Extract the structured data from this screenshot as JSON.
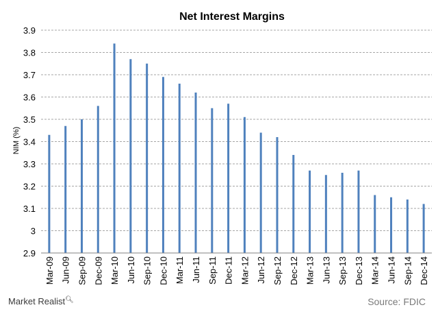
{
  "chart_data": {
    "type": "bar",
    "title": "Net Interest Margins",
    "ylabel": "NIM (%)",
    "xlabel": "",
    "ylim": [
      2.9,
      3.9
    ],
    "yticks": [
      "2.9",
      "3",
      "3.1",
      "3.2",
      "3.3",
      "3.4",
      "3.5",
      "3.6",
      "3.7",
      "3.8",
      "3.9"
    ],
    "grid": true,
    "bar_color": "#4f81bd",
    "categories": [
      "Mar-09",
      "Jun-09",
      "Sep-09",
      "Dec-09",
      "Mar-10",
      "Jun-10",
      "Sep-10",
      "Dec-10",
      "Mar-11",
      "Jun-11",
      "Sep-11",
      "Dec-11",
      "Mar-12",
      "Jun-12",
      "Sep-12",
      "Dec-12",
      "Mar-13",
      "Jun-13",
      "Sep-13",
      "Dec-13",
      "Mar-14",
      "Jun-14",
      "Sep-14",
      "Dec-14"
    ],
    "values": [
      3.43,
      3.47,
      3.5,
      3.56,
      3.84,
      3.77,
      3.75,
      3.69,
      3.66,
      3.62,
      3.55,
      3.57,
      3.51,
      3.44,
      3.42,
      3.34,
      3.27,
      3.25,
      3.26,
      3.27,
      3.16,
      3.15,
      3.14,
      3.12
    ]
  },
  "footer": {
    "brand": "Market Realist",
    "brand_icon": "magnifier-q-icon",
    "source": "Source: FDIC"
  }
}
